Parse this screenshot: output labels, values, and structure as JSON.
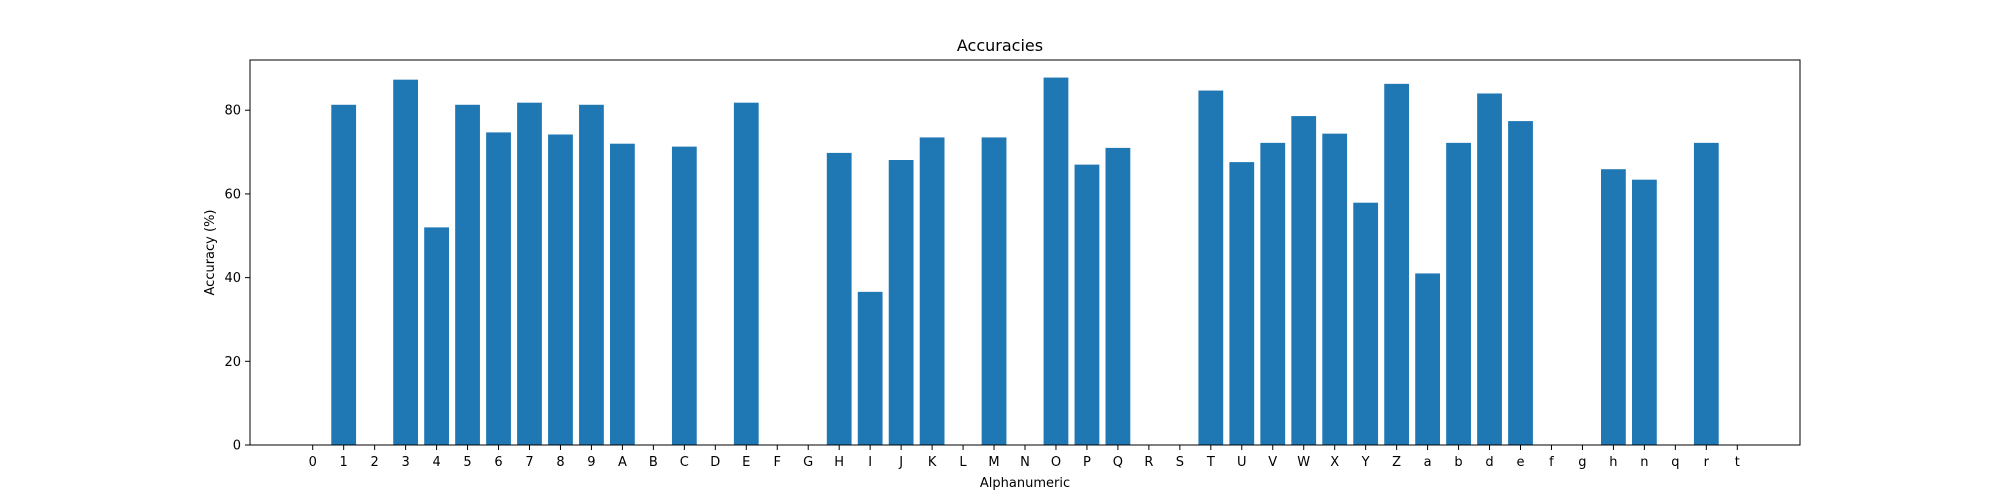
{
  "chart_data": {
    "type": "bar",
    "title": "Accuracies",
    "xlabel": "Alphanumeric",
    "ylabel": "Accuracy (%)",
    "ylim": [
      0,
      92
    ],
    "yticks": [
      0,
      20,
      40,
      60,
      80
    ],
    "grid": false,
    "bar_color": "#1f77b4",
    "categories": [
      "0",
      "1",
      "2",
      "3",
      "4",
      "5",
      "6",
      "7",
      "8",
      "9",
      "A",
      "B",
      "C",
      "D",
      "E",
      "F",
      "G",
      "H",
      "I",
      "J",
      "K",
      "L",
      "M",
      "N",
      "O",
      "P",
      "Q",
      "R",
      "S",
      "T",
      "U",
      "V",
      "W",
      "X",
      "Y",
      "Z",
      "a",
      "b",
      "d",
      "e",
      "f",
      "g",
      "h",
      "n",
      "q",
      "r",
      "t"
    ],
    "values": [
      0,
      81.3,
      0,
      87.3,
      52,
      81.3,
      74.7,
      81.8,
      74.2,
      81.3,
      72,
      0,
      71.3,
      0,
      81.8,
      0,
      0,
      69.8,
      36.6,
      68.1,
      73.5,
      0,
      73.5,
      0,
      87.8,
      67,
      71,
      0,
      0,
      84.7,
      67.6,
      72.2,
      78.6,
      74.4,
      57.9,
      86.3,
      41,
      72.2,
      84,
      77.4,
      0,
      0,
      65.9,
      63.4,
      0,
      72.2,
      0
    ]
  }
}
